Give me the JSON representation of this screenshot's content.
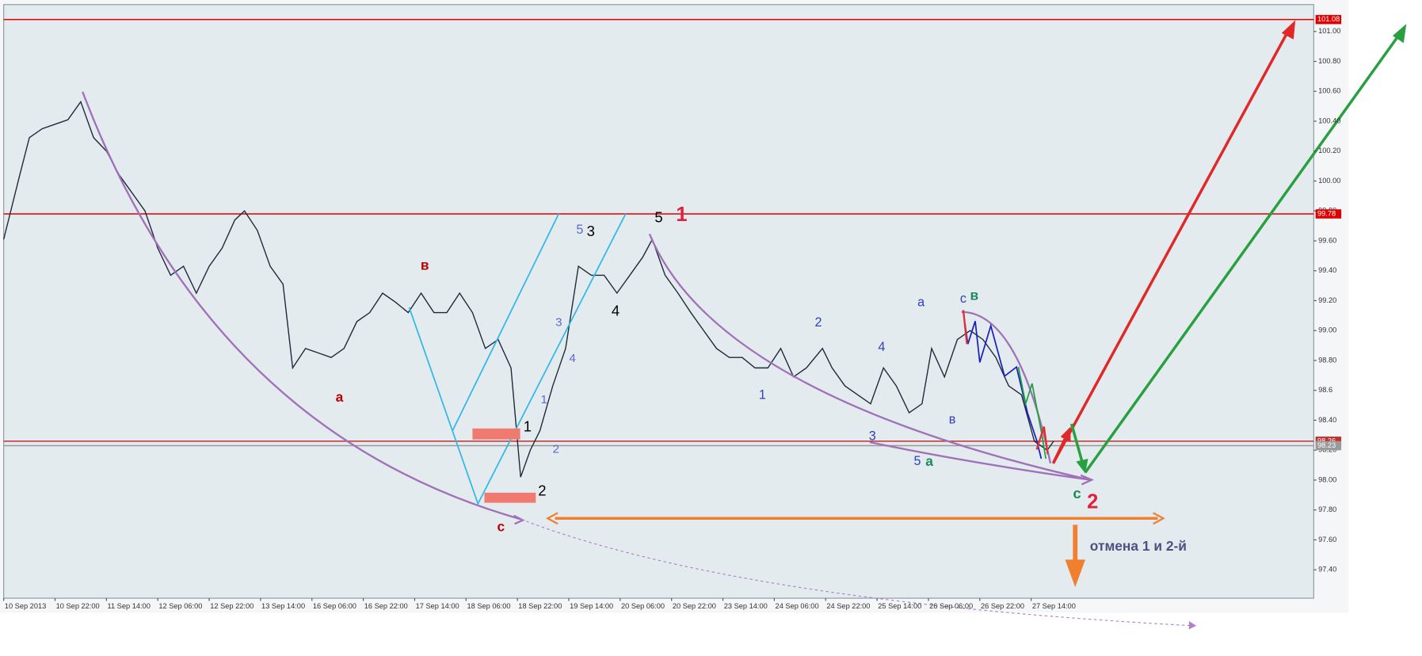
{
  "chart_data": {
    "type": "line",
    "color": "#1e2a38",
    "x": [
      0,
      5,
      8,
      12,
      16,
      20,
      24,
      28,
      32,
      36,
      40,
      44,
      48,
      52,
      56,
      60,
      64,
      68,
      72,
      75,
      79,
      83,
      87,
      90,
      94,
      98,
      102,
      106,
      110,
      114,
      118,
      122,
      126,
      130,
      134,
      138,
      142,
      146,
      150,
      154,
      158,
      161,
      164,
      167,
      171,
      175,
      179,
      183,
      187,
      191,
      195,
      199,
      202,
      206,
      210,
      214,
      218,
      222,
      226,
      230,
      234,
      238,
      242,
      246,
      250,
      255,
      258,
      262,
      266,
      270,
      274,
      278,
      282,
      286,
      289,
      293,
      297,
      301,
      305,
      309,
      313,
      317,
      321,
      325,
      327
    ],
    "values": [
      99.61,
      100.04,
      100.29,
      100.35,
      100.38,
      100.41,
      100.53,
      100.29,
      100.2,
      100.04,
      99.92,
      99.8,
      99.55,
      99.37,
      99.43,
      99.25,
      99.43,
      99.55,
      99.74,
      99.8,
      99.67,
      99.43,
      99.31,
      98.75,
      98.88,
      98.85,
      98.82,
      98.88,
      99.06,
      99.12,
      99.25,
      99.19,
      99.12,
      99.25,
      99.12,
      99.12,
      99.25,
      99.12,
      98.88,
      98.94,
      98.75,
      98.02,
      98.2,
      98.33,
      98.63,
      98.88,
      99.43,
      99.37,
      99.37,
      99.25,
      99.37,
      99.49,
      99.61,
      99.37,
      99.25,
      99.12,
      99.0,
      98.88,
      98.82,
      98.82,
      98.75,
      98.75,
      98.88,
      98.69,
      98.75,
      98.88,
      98.75,
      98.63,
      98.57,
      98.51,
      98.75,
      98.63,
      98.45,
      98.51,
      98.88,
      98.69,
      98.94,
      99.0,
      98.94,
      98.82,
      98.63,
      98.57,
      98.26,
      98.2,
      98.26
    ],
    "xlim": [
      0,
      408
    ],
    "xticks": [
      {
        "value": 0,
        "label": "10 Sep 2013"
      },
      {
        "value": 16,
        "label": "10 Sep 22:00"
      },
      {
        "value": 32,
        "label": "11 Sep 14:00"
      },
      {
        "value": 48,
        "label": "12 Sep 06:00"
      },
      {
        "value": 64,
        "label": "12 Sep 22:00"
      },
      {
        "value": 80,
        "label": "13 Sep 14:00"
      },
      {
        "value": 96,
        "label": "16 Sep 06:00"
      },
      {
        "value": 112,
        "label": "16 Sep 22:00"
      },
      {
        "value": 128,
        "label": "17 Sep 14:00"
      },
      {
        "value": 144,
        "label": "18 Sep 06:00"
      },
      {
        "value": 160,
        "label": "18 Sep 22:00"
      },
      {
        "value": 176,
        "label": "19 Sep 14:00"
      },
      {
        "value": 192,
        "label": "20 Sep 06:00"
      },
      {
        "value": 208,
        "label": "20 Sep 22:00"
      },
      {
        "value": 224,
        "label": "23 Sep 14:00"
      },
      {
        "value": 240,
        "label": "24 Sep 06:00"
      },
      {
        "value": 256,
        "label": "24 Sep 22:00"
      },
      {
        "value": 272,
        "label": "25 Sep 14:00"
      },
      {
        "value": 288,
        "label": "26 Sep 06:00"
      },
      {
        "value": 304,
        "label": "26 Sep 22:00"
      },
      {
        "value": 320,
        "label": "27 Sep 14:00"
      }
    ],
    "ylim": [
      97.21,
      101.18
    ],
    "yticks": [
      {
        "value": 97.4,
        "label": "97.40"
      },
      {
        "value": 97.6,
        "label": "97.60"
      },
      {
        "value": 97.8,
        "label": "97.80"
      },
      {
        "value": 98,
        "label": "98.00"
      },
      {
        "value": 98.2,
        "label": "98.20"
      },
      {
        "value": 98.4,
        "label": "98.40"
      },
      98.6,
      {
        "value": 98.8,
        "label": "98.80"
      },
      {
        "value": 99,
        "label": "99.00"
      },
      {
        "value": 99.2,
        "label": "99.20"
      },
      {
        "value": 99.4,
        "label": "99.40"
      },
      {
        "value": 99.6,
        "label": "99.60"
      },
      {
        "value": 99.8,
        "label": "99.80"
      },
      {
        "value": 100,
        "label": "100.00"
      },
      {
        "value": 100.2,
        "label": "100.20"
      },
      {
        "value": 100.4,
        "label": "100.40"
      },
      {
        "value": 100.6,
        "label": "100.60"
      },
      {
        "value": 100.8,
        "label": "100.80"
      },
      {
        "value": 101,
        "label": "101.00"
      }
    ],
    "hlines": [
      {
        "value": 101.08,
        "color": "#e00000"
      },
      {
        "value": 99.78,
        "color": "#e00000"
      },
      {
        "value": 98.26,
        "color": "#c03030"
      },
      {
        "value": 98.23,
        "color": "#9a9a9a"
      }
    ],
    "annotations": [
      "в",
      "а",
      "с",
      "1",
      "2",
      "3",
      "4",
      "5",
      "1",
      "5",
      "1",
      "2",
      "3",
      "4",
      "1",
      "2",
      "3",
      "4",
      "5",
      "а",
      "а",
      "в",
      "с",
      "в",
      "с",
      "2",
      "отмена 1 и  2-й"
    ]
  }
}
